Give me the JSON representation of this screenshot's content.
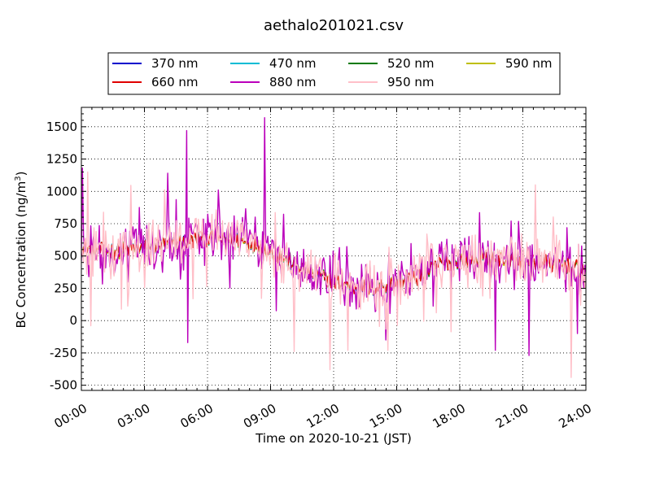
{
  "chart_data": {
    "type": "line",
    "title": "aethalo201021.csv",
    "xlabel": "Time on 2020-10-21 (JST)",
    "ylabel_main": "BC Concentration (ng/m",
    "ylabel_sup": "3",
    "ylabel_close": ")",
    "xlim": [
      0,
      24
    ],
    "ylim": [
      -540,
      1650
    ],
    "x_ticks": [
      {
        "value": 0,
        "label": "00:00"
      },
      {
        "value": 3,
        "label": "03:00"
      },
      {
        "value": 6,
        "label": "06:00"
      },
      {
        "value": 9,
        "label": "09:00"
      },
      {
        "value": 12,
        "label": "12:00"
      },
      {
        "value": 15,
        "label": "15:00"
      },
      {
        "value": 18,
        "label": "18:00"
      },
      {
        "value": 21,
        "label": "21:00"
      },
      {
        "value": 24,
        "label": "24:00"
      }
    ],
    "y_ticks": [
      -500,
      -250,
      0,
      250,
      500,
      750,
      1000,
      1250,
      1500
    ],
    "grid": true,
    "legend_position": "top-center",
    "legend_columns": 4,
    "x_unit": "hours since 00:00",
    "series": [
      {
        "name": "370 nm",
        "color": "#0000cc",
        "amp": 70,
        "anchors": [
          [
            0,
            560
          ],
          [
            1.5,
            540
          ],
          [
            3,
            570
          ],
          [
            4.5,
            600
          ],
          [
            6,
            640
          ],
          [
            7.5,
            620
          ],
          [
            8.5,
            580
          ],
          [
            10,
            450
          ],
          [
            11,
            360
          ],
          [
            12,
            300
          ],
          [
            13,
            260
          ],
          [
            14,
            250
          ],
          [
            15,
            300
          ],
          [
            16,
            330
          ],
          [
            17,
            430
          ],
          [
            18,
            470
          ],
          [
            19,
            480
          ],
          [
            20,
            470
          ],
          [
            21,
            460
          ],
          [
            22,
            450
          ],
          [
            23,
            430
          ],
          [
            24,
            380
          ]
        ]
      },
      {
        "name": "470 nm",
        "color": "#00bcd4",
        "amp": 70,
        "anchors": [
          [
            0,
            560
          ],
          [
            1.5,
            540
          ],
          [
            3,
            570
          ],
          [
            4.5,
            600
          ],
          [
            6,
            640
          ],
          [
            7.5,
            620
          ],
          [
            8.5,
            580
          ],
          [
            10,
            450
          ],
          [
            11,
            360
          ],
          [
            12,
            300
          ],
          [
            13,
            260
          ],
          [
            14,
            250
          ],
          [
            15,
            300
          ],
          [
            16,
            330
          ],
          [
            17,
            430
          ],
          [
            18,
            470
          ],
          [
            19,
            480
          ],
          [
            20,
            470
          ],
          [
            21,
            460
          ],
          [
            22,
            450
          ],
          [
            23,
            430
          ],
          [
            24,
            380
          ]
        ]
      },
      {
        "name": "520 nm",
        "color": "#007a00",
        "amp": 70,
        "anchors": [
          [
            0,
            560
          ],
          [
            1.5,
            540
          ],
          [
            3,
            570
          ],
          [
            4.5,
            600
          ],
          [
            6,
            640
          ],
          [
            7.5,
            620
          ],
          [
            8.5,
            580
          ],
          [
            10,
            450
          ],
          [
            11,
            360
          ],
          [
            12,
            300
          ],
          [
            13,
            260
          ],
          [
            14,
            250
          ],
          [
            15,
            300
          ],
          [
            16,
            330
          ],
          [
            17,
            430
          ],
          [
            18,
            470
          ],
          [
            19,
            480
          ],
          [
            20,
            470
          ],
          [
            21,
            460
          ],
          [
            22,
            450
          ],
          [
            23,
            430
          ],
          [
            24,
            380
          ]
        ]
      },
      {
        "name": "590 nm",
        "color": "#bfbf00",
        "amp": 70,
        "anchors": [
          [
            0,
            560
          ],
          [
            1.5,
            540
          ],
          [
            3,
            570
          ],
          [
            4.5,
            600
          ],
          [
            6,
            640
          ],
          [
            7.5,
            620
          ],
          [
            8.5,
            580
          ],
          [
            10,
            450
          ],
          [
            11,
            360
          ],
          [
            12,
            300
          ],
          [
            13,
            260
          ],
          [
            14,
            250
          ],
          [
            15,
            300
          ],
          [
            16,
            330
          ],
          [
            17,
            430
          ],
          [
            18,
            470
          ],
          [
            19,
            480
          ],
          [
            20,
            470
          ],
          [
            21,
            460
          ],
          [
            22,
            450
          ],
          [
            23,
            430
          ],
          [
            24,
            380
          ]
        ]
      },
      {
        "name": "660 nm",
        "color": "#e00000",
        "amp": 75,
        "anchors": [
          [
            0,
            560
          ],
          [
            1.5,
            540
          ],
          [
            3,
            570
          ],
          [
            4.5,
            600
          ],
          [
            6,
            640
          ],
          [
            7.5,
            620
          ],
          [
            8.5,
            580
          ],
          [
            10,
            450
          ],
          [
            11,
            360
          ],
          [
            12,
            300
          ],
          [
            13,
            260
          ],
          [
            14,
            250
          ],
          [
            15,
            300
          ],
          [
            16,
            330
          ],
          [
            17,
            430
          ],
          [
            18,
            470
          ],
          [
            19,
            480
          ],
          [
            20,
            470
          ],
          [
            21,
            460
          ],
          [
            22,
            450
          ],
          [
            23,
            430
          ],
          [
            24,
            380
          ]
        ]
      },
      {
        "name": "880 nm",
        "color": "#bb00bb",
        "amp": 230,
        "anchors": [
          [
            0,
            560
          ],
          [
            1.5,
            540
          ],
          [
            3,
            570
          ],
          [
            4.5,
            600
          ],
          [
            6,
            650
          ],
          [
            7.5,
            640
          ],
          [
            8.5,
            600
          ],
          [
            10,
            430
          ],
          [
            11,
            340
          ],
          [
            12,
            290
          ],
          [
            13,
            250
          ],
          [
            14,
            240
          ],
          [
            15,
            300
          ],
          [
            16,
            330
          ],
          [
            17,
            440
          ],
          [
            18,
            470
          ],
          [
            19,
            480
          ],
          [
            20,
            470
          ],
          [
            21,
            460
          ],
          [
            22,
            450
          ],
          [
            23,
            430
          ],
          [
            24,
            380
          ]
        ],
        "spikes": [
          [
            0.05,
            1180
          ],
          [
            5.0,
            1470
          ],
          [
            5.05,
            -170
          ],
          [
            6.5,
            1010
          ],
          [
            8.7,
            1570
          ],
          [
            4.1,
            1140
          ],
          [
            14.5,
            -150
          ],
          [
            19.7,
            -230
          ],
          [
            21.3,
            -270
          ],
          [
            23.6,
            -100
          ]
        ]
      },
      {
        "name": "950 nm",
        "color": "#ffbfc8",
        "amp": 240,
        "anchors": [
          [
            0,
            560
          ],
          [
            1.5,
            540
          ],
          [
            3,
            570
          ],
          [
            4.5,
            600
          ],
          [
            6,
            640
          ],
          [
            7.5,
            620
          ],
          [
            8.5,
            580
          ],
          [
            10,
            440
          ],
          [
            11,
            350
          ],
          [
            12,
            290
          ],
          [
            13,
            260
          ],
          [
            14,
            250
          ],
          [
            15,
            300
          ],
          [
            16,
            330
          ],
          [
            17,
            430
          ],
          [
            18,
            470
          ],
          [
            19,
            480
          ],
          [
            20,
            470
          ],
          [
            21,
            460
          ],
          [
            22,
            450
          ],
          [
            23,
            430
          ],
          [
            24,
            380
          ]
        ],
        "spikes": [
          [
            0.3,
            1150
          ],
          [
            0.45,
            -40
          ],
          [
            11.8,
            -380
          ],
          [
            21.6,
            1050
          ],
          [
            23.3,
            -440
          ],
          [
            10.1,
            -240
          ],
          [
            12.7,
            -230
          ]
        ]
      }
    ]
  }
}
